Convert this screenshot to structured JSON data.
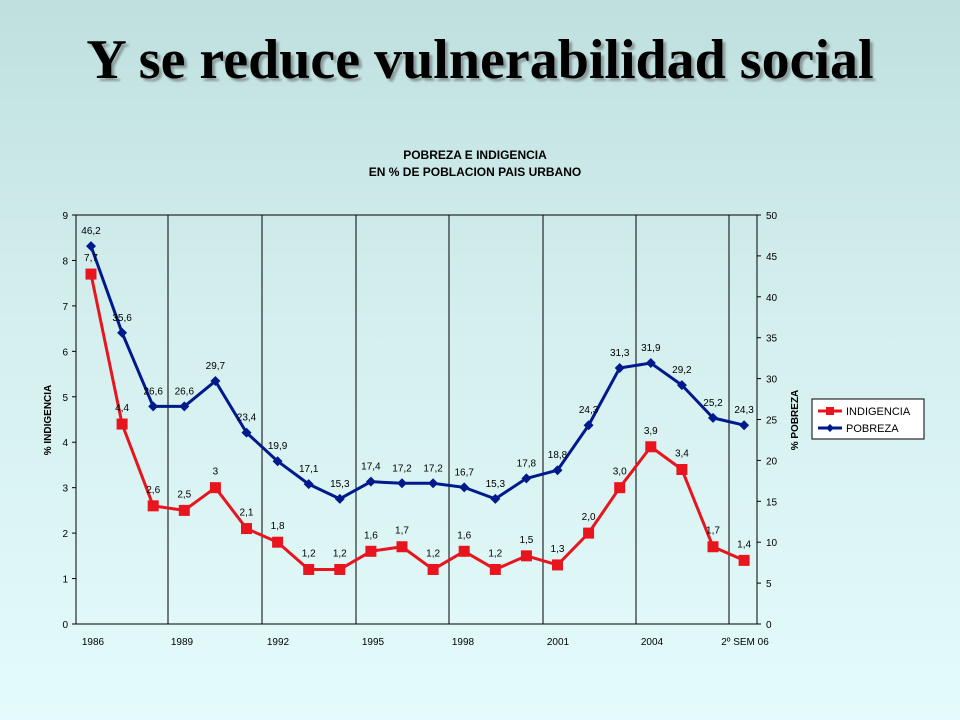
{
  "slide": {
    "title": "Y se reduce vulnerabilidad social"
  },
  "chart_data": {
    "type": "line",
    "title": "POBREZA E INDIGENCIA",
    "subtitle": "EN % DE POBLACION PAIS URBANO",
    "ylabel_left": "% INDIGENCIA",
    "ylabel_right": "% POBREZA",
    "ylim_left": [
      0,
      9
    ],
    "ylim_right": [
      0,
      50
    ],
    "yticks_left": [
      "0",
      "1",
      "2",
      "3",
      "4",
      "5",
      "6",
      "7",
      "8",
      "9"
    ],
    "yticks_right": [
      "0",
      "5",
      "10",
      "15",
      "20",
      "25",
      "30",
      "35",
      "40",
      "45",
      "50"
    ],
    "xtick_labels": [
      "1986",
      "1989",
      "1992",
      "1995",
      "1998",
      "2001",
      "2004",
      "2º SEM 06"
    ],
    "grid": "vertical lines at x tick labels",
    "legend_position": "right",
    "series": [
      {
        "name": "INDIGENCIA",
        "axis": "left",
        "color": "#e8141e",
        "marker": "square",
        "values": [
          7.7,
          4.4,
          2.6,
          2.5,
          3.0,
          2.1,
          1.8,
          1.2,
          1.2,
          1.6,
          1.7,
          1.2,
          1.6,
          1.2,
          1.5,
          1.3,
          2.0,
          3.0,
          3.9,
          3.4,
          1.7,
          1.4
        ],
        "labels": [
          "7,7",
          "4,4",
          "2,6",
          "2,5",
          "3",
          "2,1",
          "1,8",
          "1,2",
          "1,2",
          "1,6",
          "1,7",
          "1,2",
          "1,6",
          "1,2",
          "1,5",
          "1,3",
          "2,0",
          "3,0",
          "3,9",
          "3,4",
          "1,7",
          "1,4"
        ]
      },
      {
        "name": "POBREZA",
        "axis": "right",
        "color": "#001a8c",
        "marker": "diamond",
        "values": [
          46.2,
          35.6,
          26.6,
          26.6,
          29.7,
          23.4,
          19.9,
          17.1,
          15.3,
          17.4,
          17.2,
          17.2,
          16.7,
          15.3,
          17.8,
          18.8,
          24.3,
          31.3,
          31.9,
          29.2,
          25.2,
          24.3
        ],
        "labels": [
          "46,2",
          "35,6",
          "26,6",
          "26,6",
          "29,7",
          "23,4",
          "19,9",
          "17,1",
          "15,3",
          "17,4",
          "17,2",
          "17,2",
          "16,7",
          "15,3",
          "17,8",
          "18,8",
          "24,3",
          "31,3",
          "31,9",
          "29,2",
          "25,2",
          "24,3"
        ]
      }
    ]
  }
}
